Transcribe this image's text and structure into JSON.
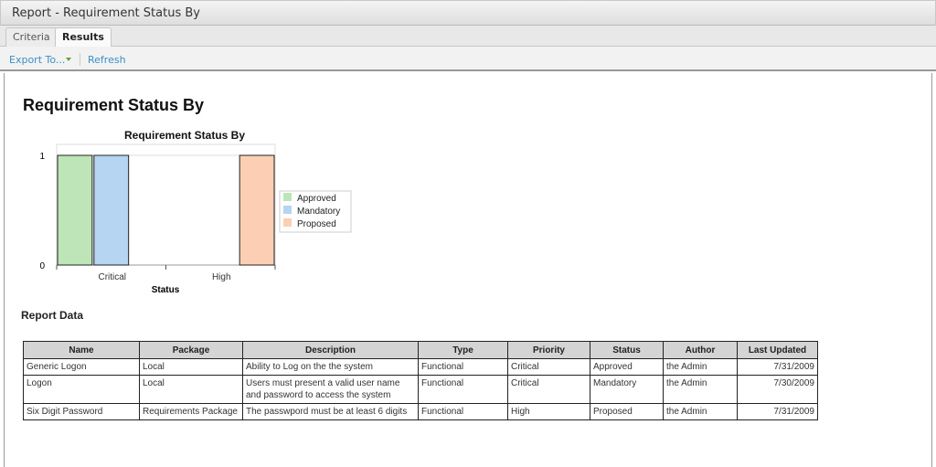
{
  "window": {
    "title": "Report - Requirement Status By"
  },
  "tabs": [
    {
      "label": "Criteria"
    },
    {
      "label": "Results"
    }
  ],
  "toolbar": {
    "export_label": "Export To...",
    "refresh_label": "Refresh"
  },
  "report": {
    "title": "Requirement Status By",
    "data_heading": "Report Data"
  },
  "chart_data": {
    "type": "bar",
    "title": "Requirement Status By",
    "xlabel": "Status",
    "ylabel": "",
    "categories": [
      "Critical",
      "High"
    ],
    "ylim": [
      0,
      1
    ],
    "yticks": [
      "0",
      "1"
    ],
    "legend": "right",
    "series": [
      {
        "name": "Approved",
        "color": "#bde5b8",
        "values": [
          1,
          0
        ]
      },
      {
        "name": "Mandatory",
        "color": "#b5d5f2",
        "values": [
          1,
          0
        ]
      },
      {
        "name": "Proposed",
        "color": "#fccfb5",
        "values": [
          0,
          1
        ]
      }
    ]
  },
  "table": {
    "columns": [
      "Name",
      "Package",
      "Description",
      "Type",
      "Priority",
      "Status",
      "Author",
      "Last Updated"
    ],
    "rows": [
      [
        "Generic Logon",
        "Local",
        "Ability to Log on the the system",
        "Functional",
        "Critical",
        "Approved",
        "the Admin",
        "7/31/2009"
      ],
      [
        "Logon",
        "Local",
        "Users must present a valid user name and password to access the system",
        "Functional",
        "Critical",
        "Mandatory",
        "the Admin",
        "7/30/2009"
      ],
      [
        "Six Digit Password",
        "Requirements Package",
        "The passwpord must be at least 6 digits",
        "Functional",
        "High",
        "Proposed",
        "the Admin",
        "7/31/2009"
      ]
    ]
  }
}
